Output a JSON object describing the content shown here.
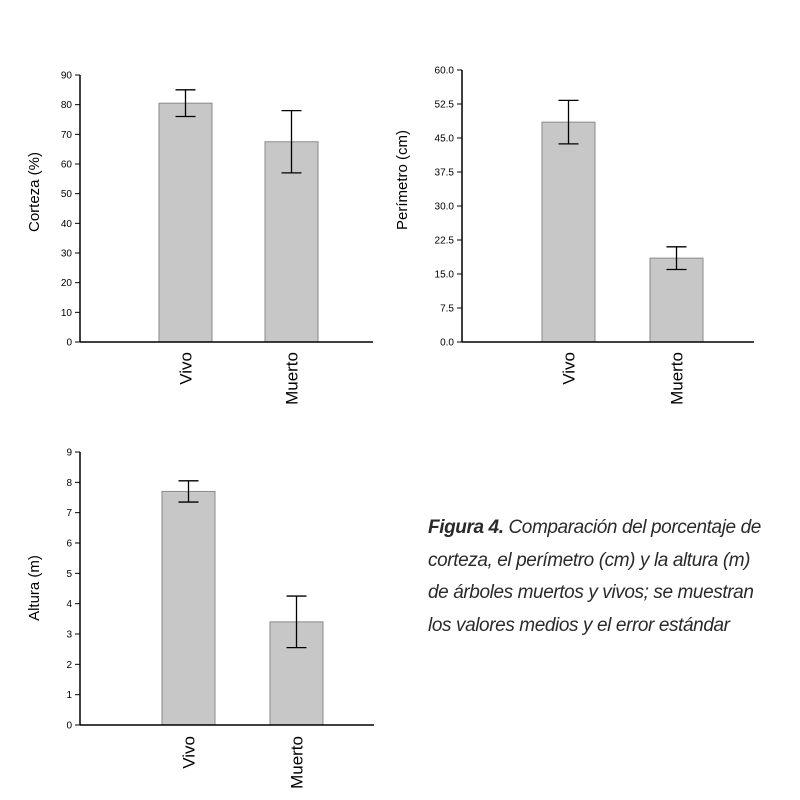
{
  "caption": {
    "label": "Figura 4.",
    "text": " Comparación del porcentaje de corteza, el perímetro (cm) y la altura (m) de árboles muertos y vivos; se muestran los valores medios y el error estándar"
  },
  "colors": {
    "bar_fill": "#c7c7c7",
    "bar_stroke": "#8a8a8a"
  },
  "chart_data": [
    {
      "type": "bar",
      "title": "",
      "ylabel": "Corteza (%)",
      "xlabel": "",
      "categories": [
        "Vivo",
        "Muerto"
      ],
      "values": [
        80.5,
        67.5
      ],
      "errors": [
        4.5,
        10.5
      ],
      "ylim": [
        0,
        90
      ],
      "yticks": [
        0,
        10,
        20,
        30,
        40,
        50,
        60,
        70,
        80,
        90
      ],
      "ytick_labels": [
        "0",
        "10",
        "20",
        "30",
        "40",
        "50",
        "60",
        "70",
        "80",
        "90"
      ],
      "grid": false
    },
    {
      "type": "bar",
      "title": "",
      "ylabel": "Perímetro (cm)",
      "xlabel": "",
      "categories": [
        "Vivo",
        "Muerto"
      ],
      "values": [
        48.5,
        18.5
      ],
      "errors": [
        4.8,
        2.5
      ],
      "ylim": [
        0,
        60
      ],
      "yticks": [
        0,
        7.5,
        15,
        22.5,
        30,
        37.5,
        45,
        52.5,
        60
      ],
      "ytick_labels": [
        "0.0",
        "7.5",
        "15.0",
        "22.5",
        "30.0",
        "37.5",
        "45.0",
        "52.5",
        "60.0"
      ],
      "grid": false
    },
    {
      "type": "bar",
      "title": "",
      "ylabel": "Altura (m)",
      "xlabel": "",
      "categories": [
        "Vivo",
        "Muerto"
      ],
      "values": [
        7.7,
        3.4
      ],
      "errors": [
        0.35,
        0.85
      ],
      "ylim": [
        0,
        9
      ],
      "yticks": [
        0,
        1,
        2,
        3,
        4,
        5,
        6,
        7,
        8,
        9
      ],
      "ytick_labels": [
        "0",
        "1",
        "2",
        "3",
        "4",
        "5",
        "6",
        "7",
        "8",
        "9"
      ],
      "grid": false
    }
  ]
}
